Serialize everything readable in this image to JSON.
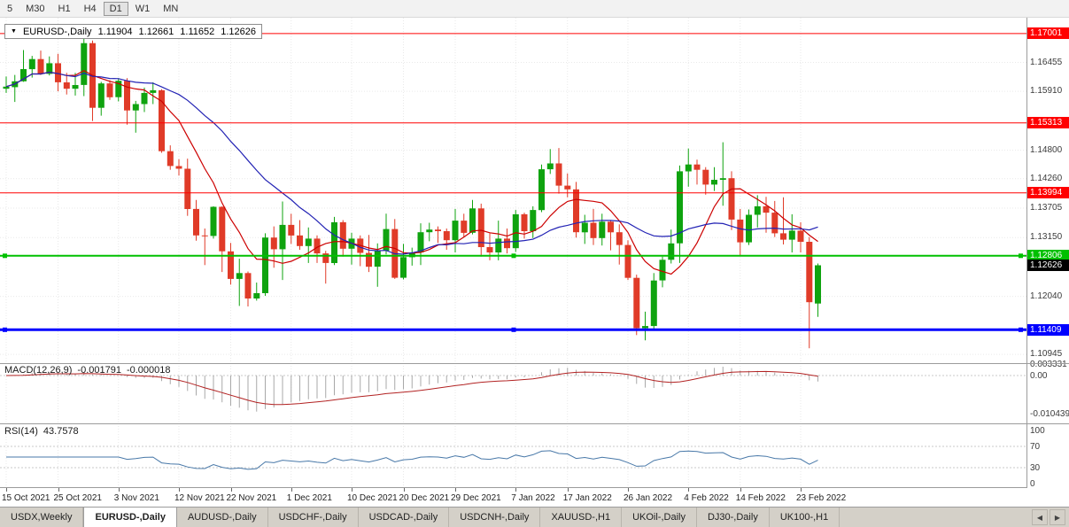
{
  "toolbar": {
    "timeframes": [
      {
        "label": "5",
        "active": false
      },
      {
        "label": "M30",
        "active": false
      },
      {
        "label": "H1",
        "active": false
      },
      {
        "label": "H4",
        "active": false
      },
      {
        "label": "D1",
        "active": true
      },
      {
        "label": "W1",
        "active": false
      },
      {
        "label": "MN",
        "active": false
      }
    ]
  },
  "icons": {
    "dropdown": "▼",
    "scroll_left": "◀",
    "scroll_right": "▶"
  },
  "chart_data": {
    "type": "candlestick",
    "symbol": "EURUSD-,Daily",
    "ohlc": {
      "open": "1.11904",
      "high": "1.12661",
      "low": "1.11652",
      "close": "1.12626"
    },
    "price_axis_labels": [
      "1.16455",
      "1.15910",
      "1.14800",
      "1.14260",
      "1.13705",
      "1.13150",
      "1.12040",
      "1.10945"
    ],
    "levels": [
      {
        "label": "1.17001",
        "price": 1.17001,
        "color": "#ff0000",
        "width": 1
      },
      {
        "label": "1.15313",
        "price": 1.15313,
        "color": "#ff0000",
        "width": 1
      },
      {
        "label": "1.13994",
        "price": 1.13994,
        "color": "#ff0000",
        "width": 1
      },
      {
        "label": "1.12806",
        "price": 1.12806,
        "color": "#00c000",
        "width": 2
      },
      {
        "label": "1.11409",
        "price": 1.11409,
        "color": "#0000ff",
        "width": 3
      }
    ],
    "current_price": {
      "label": "1.12626",
      "price": 1.12626,
      "color": "#000000"
    },
    "date_labels": [
      {
        "text": "15 Oct 2021",
        "index": 0
      },
      {
        "text": "25 Oct 2021",
        "index": 6
      },
      {
        "text": "3 Nov 2021",
        "index": 13
      },
      {
        "text": "12 Nov 2021",
        "index": 20
      },
      {
        "text": "22 Nov 2021",
        "index": 26
      },
      {
        "text": "1 Dec 2021",
        "index": 33
      },
      {
        "text": "10 Dec 2021",
        "index": 40
      },
      {
        "text": "20 Dec 2021",
        "index": 46
      },
      {
        "text": "29 Dec 2021",
        "index": 52
      },
      {
        "text": "7 Jan 2022",
        "index": 59
      },
      {
        "text": "17 Jan 2022",
        "index": 65
      },
      {
        "text": "26 Jan 2022",
        "index": 72
      },
      {
        "text": "4 Feb 2022",
        "index": 79
      },
      {
        "text": "14 Feb 2022",
        "index": 85
      },
      {
        "text": "23 Feb 2022",
        "index": 92
      }
    ],
    "candles": [
      [
        1.1596,
        1.1619,
        1.1588,
        1.16
      ],
      [
        1.1599,
        1.1622,
        1.1571,
        1.161
      ],
      [
        1.161,
        1.1669,
        1.1609,
        1.1633
      ],
      [
        1.1633,
        1.1658,
        1.1617,
        1.1652
      ],
      [
        1.1652,
        1.1668,
        1.1622,
        1.1624
      ],
      [
        1.1624,
        1.1657,
        1.1621,
        1.1644
      ],
      [
        1.1644,
        1.1662,
        1.1591,
        1.1608
      ],
      [
        1.1608,
        1.1626,
        1.1585,
        1.1596
      ],
      [
        1.1596,
        1.1626,
        1.1583,
        1.1603
      ],
      [
        1.1603,
        1.1692,
        1.1582,
        1.1682
      ],
      [
        1.1682,
        1.1687,
        1.1535,
        1.156
      ],
      [
        1.156,
        1.1609,
        1.1545,
        1.1606
      ],
      [
        1.1606,
        1.1612,
        1.1575,
        1.158
      ],
      [
        1.158,
        1.1616,
        1.1572,
        1.1611
      ],
      [
        1.1611,
        1.1616,
        1.1528,
        1.1555
      ],
      [
        1.1555,
        1.1573,
        1.1513,
        1.1567
      ],
      [
        1.1567,
        1.1598,
        1.1552,
        1.1588
      ],
      [
        1.1588,
        1.1608,
        1.1567,
        1.1593
      ],
      [
        1.1593,
        1.1595,
        1.1475,
        1.1478
      ],
      [
        1.1478,
        1.1489,
        1.1443,
        1.145
      ],
      [
        1.145,
        1.1463,
        1.1432,
        1.1445
      ],
      [
        1.1445,
        1.1464,
        1.1356,
        1.1369
      ],
      [
        1.1369,
        1.1386,
        1.1309,
        1.1319
      ],
      [
        1.1319,
        1.1332,
        1.1263,
        1.1318
      ],
      [
        1.1318,
        1.1374,
        1.1313,
        1.1373
      ],
      [
        1.1373,
        1.1374,
        1.125,
        1.1289
      ],
      [
        1.1289,
        1.1305,
        1.1226,
        1.1237
      ],
      [
        1.1237,
        1.1275,
        1.1186,
        1.1248
      ],
      [
        1.1248,
        1.1251,
        1.1185,
        1.12
      ],
      [
        1.12,
        1.123,
        1.1196,
        1.121
      ],
      [
        1.121,
        1.1323,
        1.1205,
        1.1315
      ],
      [
        1.1315,
        1.1336,
        1.1258,
        1.1293
      ],
      [
        1.1293,
        1.1383,
        1.1235,
        1.1339
      ],
      [
        1.1339,
        1.136,
        1.1303,
        1.1319
      ],
      [
        1.1319,
        1.1348,
        1.1292,
        1.1299
      ],
      [
        1.1299,
        1.1334,
        1.1267,
        1.1313
      ],
      [
        1.1313,
        1.1319,
        1.1267,
        1.1285
      ],
      [
        1.1285,
        1.129,
        1.1228,
        1.1267
      ],
      [
        1.1267,
        1.1354,
        1.1263,
        1.1344
      ],
      [
        1.1344,
        1.1348,
        1.1279,
        1.1294
      ],
      [
        1.1294,
        1.1324,
        1.1264,
        1.1313
      ],
      [
        1.1313,
        1.1319,
        1.1261,
        1.1286
      ],
      [
        1.1286,
        1.132,
        1.125,
        1.126
      ],
      [
        1.126,
        1.1304,
        1.1222,
        1.129
      ],
      [
        1.129,
        1.136,
        1.1283,
        1.1331
      ],
      [
        1.1331,
        1.135,
        1.1237,
        1.1239
      ],
      [
        1.1239,
        1.1303,
        1.1236,
        1.1278
      ],
      [
        1.1278,
        1.1296,
        1.1262,
        1.1287
      ],
      [
        1.1287,
        1.1342,
        1.1263,
        1.1325
      ],
      [
        1.1325,
        1.1343,
        1.1308,
        1.133
      ],
      [
        1.133,
        1.1336,
        1.1305,
        1.1327
      ],
      [
        1.1327,
        1.1332,
        1.1292,
        1.131
      ],
      [
        1.131,
        1.1369,
        1.1287,
        1.1347
      ],
      [
        1.1347,
        1.136,
        1.1315,
        1.1324
      ],
      [
        1.1324,
        1.1386,
        1.1321,
        1.137
      ],
      [
        1.137,
        1.1379,
        1.1279,
        1.1297
      ],
      [
        1.1297,
        1.1323,
        1.1272,
        1.1287
      ],
      [
        1.1287,
        1.1347,
        1.1272,
        1.1313
      ],
      [
        1.1313,
        1.1332,
        1.1285,
        1.1295
      ],
      [
        1.1295,
        1.1367,
        1.1288,
        1.1359
      ],
      [
        1.1359,
        1.1362,
        1.1313,
        1.1327
      ],
      [
        1.1327,
        1.1374,
        1.1314,
        1.1367
      ],
      [
        1.1367,
        1.1453,
        1.1363,
        1.1444
      ],
      [
        1.1444,
        1.1482,
        1.1435,
        1.1455
      ],
      [
        1.1455,
        1.1484,
        1.1398,
        1.1413
      ],
      [
        1.1413,
        1.1436,
        1.1391,
        1.1406
      ],
      [
        1.1406,
        1.142,
        1.1315,
        1.1325
      ],
      [
        1.1325,
        1.1358,
        1.1303,
        1.1343
      ],
      [
        1.1343,
        1.1369,
        1.1301,
        1.1314
      ],
      [
        1.1314,
        1.136,
        1.13,
        1.1345
      ],
      [
        1.1345,
        1.1348,
        1.1291,
        1.1325
      ],
      [
        1.1325,
        1.134,
        1.1264,
        1.1301
      ],
      [
        1.1301,
        1.131,
        1.1235,
        1.1239
      ],
      [
        1.1239,
        1.1245,
        1.1131,
        1.1144
      ],
      [
        1.1144,
        1.1175,
        1.1121,
        1.1148
      ],
      [
        1.1148,
        1.1248,
        1.1141,
        1.1234
      ],
      [
        1.1234,
        1.1279,
        1.1221,
        1.1273
      ],
      [
        1.1273,
        1.133,
        1.1266,
        1.1304
      ],
      [
        1.1304,
        1.1451,
        1.1267,
        1.144
      ],
      [
        1.144,
        1.1483,
        1.1411,
        1.1453
      ],
      [
        1.1453,
        1.1462,
        1.1415,
        1.1443
      ],
      [
        1.1443,
        1.1448,
        1.1396,
        1.1415
      ],
      [
        1.1415,
        1.1448,
        1.1403,
        1.1424
      ],
      [
        1.1424,
        1.1495,
        1.1375,
        1.1427
      ],
      [
        1.1427,
        1.144,
        1.1329,
        1.1349
      ],
      [
        1.1349,
        1.1369,
        1.128,
        1.1306
      ],
      [
        1.1306,
        1.1368,
        1.1301,
        1.1358
      ],
      [
        1.1358,
        1.1395,
        1.1334,
        1.1374
      ],
      [
        1.1374,
        1.1392,
        1.1324,
        1.1362
      ],
      [
        1.1362,
        1.1384,
        1.1316,
        1.1323
      ],
      [
        1.1323,
        1.1391,
        1.1302,
        1.1311
      ],
      [
        1.1311,
        1.1359,
        1.1287,
        1.1328
      ],
      [
        1.1328,
        1.1344,
        1.1287,
        1.1307
      ],
      [
        1.1307,
        1.1316,
        1.1106,
        1.1193
      ],
      [
        1.11904,
        1.12661,
        1.11652,
        1.12626
      ]
    ],
    "indicators": {
      "macd": {
        "title": "MACD(12,26,9)",
        "main_value": "-0.001791",
        "signal_value": "-0.000018",
        "axis_labels": [
          "0.003331",
          "0.00",
          "-0.010439"
        ]
      },
      "rsi": {
        "title": "RSI(14)",
        "value": "43.7578",
        "axis_labels": [
          "100",
          "70",
          "30",
          "0"
        ]
      }
    }
  },
  "tabs": [
    {
      "label": "USDX,Weekly",
      "active": false
    },
    {
      "label": "EURUSD-,Daily",
      "active": true
    },
    {
      "label": "AUDUSD-,Daily",
      "active": false
    },
    {
      "label": "USDCHF-,Daily",
      "active": false
    },
    {
      "label": "USDCAD-,Daily",
      "active": false
    },
    {
      "label": "USDCNH-,Daily",
      "active": false
    },
    {
      "label": "XAUUSD-,H1",
      "active": false
    },
    {
      "label": "UKOil-,Daily",
      "active": false
    },
    {
      "label": "DJ30-,Daily",
      "active": false
    },
    {
      "label": "UK100-,H1",
      "active": false
    }
  ],
  "colors": {
    "bull": "#0fa30f",
    "bear": "#e03b28",
    "ma_fast": "#cc0000",
    "ma_slow": "#2222b4",
    "macd_hist": "#a8a8a8",
    "macd_signal": "#b22222",
    "rsi_line": "#4878a8",
    "badge_black": "#000000"
  }
}
